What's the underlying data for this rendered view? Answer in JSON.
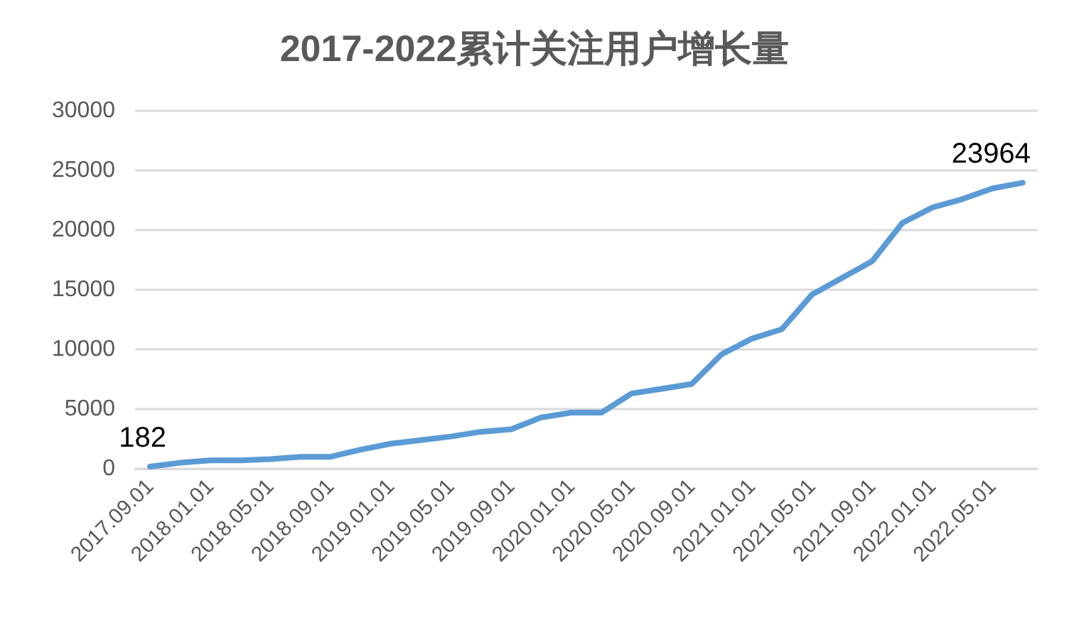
{
  "chart_data": {
    "type": "line",
    "title": "2017-2022累计关注用户增长量",
    "categories": [
      "2017.09.01",
      null,
      "2018.01.01",
      null,
      "2018.05.01",
      null,
      "2018.09.01",
      null,
      "2019.01.01",
      null,
      "2019.05.01",
      null,
      "2019.09.01",
      null,
      "2020.01.01",
      null,
      "2020.05.01",
      null,
      "2020.09.01",
      null,
      "2021.01.01",
      null,
      "2021.05.01",
      null,
      "2021.09.01",
      null,
      "2022.01.01",
      null,
      "2022.05.01",
      null
    ],
    "series": [
      {
        "color": "#5b9bd5",
        "values": [
          182,
          500,
          700,
          700,
          800,
          1000,
          1000,
          1600,
          2100,
          2400,
          2700,
          3100,
          3300,
          4300,
          4700,
          4700,
          6300,
          6700,
          7100,
          9600,
          10900,
          11700,
          14600,
          16000,
          17400,
          20600,
          21900,
          22600,
          23500,
          23964
        ],
        "value_labels": [
          "182",
          null,
          null,
          null,
          null,
          null,
          null,
          null,
          null,
          null,
          null,
          null,
          null,
          null,
          null,
          null,
          null,
          null,
          null,
          null,
          null,
          null,
          null,
          null,
          null,
          null,
          null,
          null,
          null,
          "23964"
        ]
      }
    ],
    "ylim": [
      0,
      30000
    ],
    "yticks": [
      0,
      5000,
      10000,
      15000,
      20000,
      25000,
      30000
    ],
    "grid": "y",
    "marker": "none",
    "line_style": "solid"
  }
}
